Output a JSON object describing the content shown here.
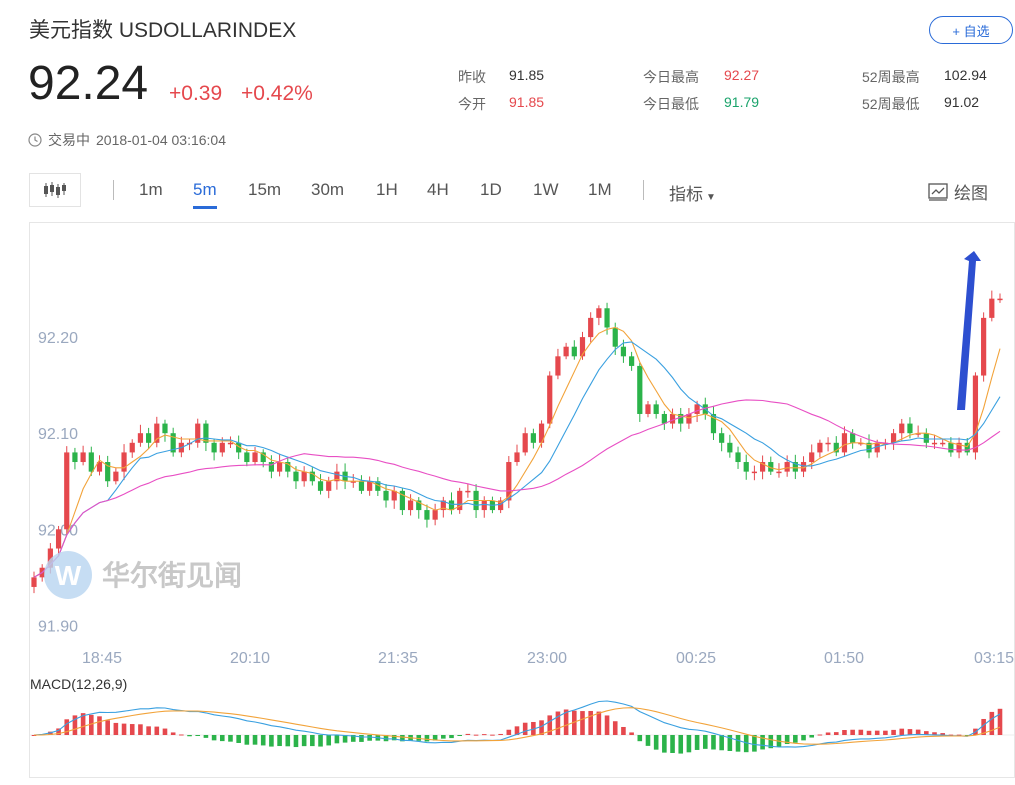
{
  "header": {
    "title": "美元指数 USDOLLARINDEX",
    "price": "92.24",
    "change": "+0.39",
    "change_pct": "+0.42%",
    "favorite_label": "+ 自选",
    "status_label": "交易中",
    "timestamp": "2018-01-04 03:16:04"
  },
  "stats": [
    {
      "label": "昨收",
      "value": "91.85",
      "color": "#333333"
    },
    {
      "label": "今开",
      "value": "91.85",
      "color": "#e5484d"
    },
    {
      "label": "今日最高",
      "value": "92.27",
      "color": "#e5484d"
    },
    {
      "label": "今日最低",
      "value": "91.79",
      "color": "#1aa36b"
    },
    {
      "label": "52周最高",
      "value": "102.94",
      "color": "#333333"
    },
    {
      "label": "52周最低",
      "value": "91.02",
      "color": "#333333"
    }
  ],
  "toolbar": {
    "periods": [
      "1m",
      "5m",
      "15m",
      "30m",
      "1H",
      "4H",
      "1D",
      "1W",
      "1M"
    ],
    "active_period": "5m",
    "indicator_label": "指标",
    "draw_label": "绘图"
  },
  "watermark": "华尔街见闻",
  "colors": {
    "up": "#e5484d",
    "down": "#2bb34a",
    "accent": "#2a6bd8",
    "ma1": "#f2a33a",
    "ma2": "#3aa0e0",
    "ma3": "#e84fc4"
  },
  "chart_data": {
    "type": "candlestick",
    "y_ticks": [
      "92.20",
      "92.10",
      "92.00",
      "91.90"
    ],
    "y_tick_values": [
      92.2,
      92.1,
      92.0,
      91.9
    ],
    "ylim": [
      91.89,
      92.3
    ],
    "x_ticks": [
      "18:45",
      "20:10",
      "21:35",
      "23:00",
      "00:25",
      "01:50",
      "03:15"
    ],
    "closes": [
      91.95,
      91.96,
      91.98,
      92.0,
      92.08,
      92.07,
      92.08,
      92.06,
      92.07,
      92.05,
      92.06,
      92.08,
      92.09,
      92.1,
      92.09,
      92.11,
      92.1,
      92.08,
      92.09,
      92.09,
      92.11,
      92.09,
      92.08,
      92.09,
      92.09,
      92.08,
      92.07,
      92.08,
      92.07,
      92.06,
      92.07,
      92.06,
      92.05,
      92.06,
      92.05,
      92.04,
      92.05,
      92.06,
      92.05,
      92.05,
      92.04,
      92.05,
      92.04,
      92.03,
      92.04,
      92.02,
      92.03,
      92.02,
      92.01,
      92.02,
      92.03,
      92.02,
      92.04,
      92.04,
      92.02,
      92.03,
      92.02,
      92.03,
      92.07,
      92.08,
      92.1,
      92.09,
      92.11,
      92.16,
      92.18,
      92.19,
      92.18,
      92.2,
      92.22,
      92.23,
      92.21,
      92.19,
      92.18,
      92.17,
      92.12,
      92.13,
      92.12,
      92.11,
      92.12,
      92.11,
      92.12,
      92.13,
      92.12,
      92.1,
      92.09,
      92.08,
      92.07,
      92.06,
      92.06,
      92.07,
      92.06,
      92.06,
      92.07,
      92.06,
      92.07,
      92.08,
      92.09,
      92.09,
      92.08,
      92.1,
      92.09,
      92.09,
      92.08,
      92.09,
      92.09,
      92.1,
      92.11,
      92.1,
      92.1,
      92.09,
      92.09,
      92.09,
      92.08,
      92.09,
      92.08,
      92.16,
      92.22,
      92.24,
      92.24
    ],
    "ma_series": [
      {
        "period": 5,
        "color": "#f2a33a"
      },
      {
        "period": 10,
        "color": "#3aa0e0"
      },
      {
        "period": 30,
        "color": "#e84fc4"
      }
    ],
    "annotation": "arrow-up",
    "macd": {
      "label": "MACD(12,26,9)",
      "fast": 12,
      "slow": 26,
      "signal": 9
    }
  }
}
